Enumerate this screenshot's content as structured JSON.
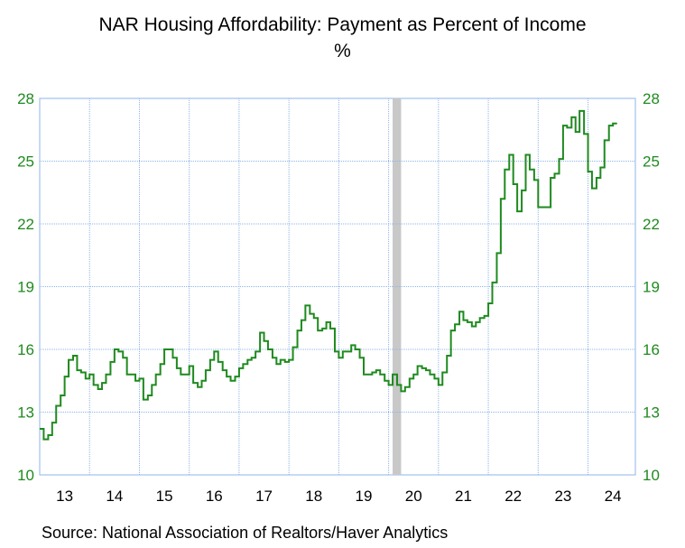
{
  "chart_data": {
    "type": "line",
    "title": "NAR Housing Affordability: Payment as Percent of Income",
    "subtitle": "%",
    "source": "Source:  National Association of Realtors/Haver Analytics",
    "ylim": [
      10,
      28
    ],
    "yticks": [
      "10",
      "13",
      "16",
      "19",
      "22",
      "25",
      "28"
    ],
    "x_range": [
      2013,
      2024.95
    ],
    "xtick_labels": [
      "13",
      "14",
      "15",
      "16",
      "17",
      "18",
      "19",
      "20",
      "21",
      "22",
      "23",
      "24"
    ],
    "grid": true,
    "step": true,
    "recession_band": [
      2020.08,
      2020.25
    ],
    "colors": {
      "series": "#1f8a1f",
      "axis_text": "#1f8a1f",
      "grid": "#8fb4e8",
      "recession": "#c8c8c8"
    },
    "series": [
      {
        "values": [
          [
            2013.0,
            12.2
          ],
          [
            2013.08,
            11.7
          ],
          [
            2013.17,
            11.9
          ],
          [
            2013.25,
            12.5
          ],
          [
            2013.33,
            13.3
          ],
          [
            2013.42,
            13.8
          ],
          [
            2013.5,
            14.7
          ],
          [
            2013.58,
            15.5
          ],
          [
            2013.67,
            15.7
          ],
          [
            2013.75,
            15.0
          ],
          [
            2013.83,
            14.9
          ],
          [
            2013.92,
            14.6
          ],
          [
            2014.0,
            14.8
          ],
          [
            2014.08,
            14.3
          ],
          [
            2014.17,
            14.1
          ],
          [
            2014.25,
            14.4
          ],
          [
            2014.33,
            14.8
          ],
          [
            2014.42,
            15.4
          ],
          [
            2014.5,
            16.0
          ],
          [
            2014.58,
            15.9
          ],
          [
            2014.67,
            15.6
          ],
          [
            2014.75,
            14.8
          ],
          [
            2014.83,
            14.8
          ],
          [
            2014.92,
            14.5
          ],
          [
            2015.0,
            14.6
          ],
          [
            2015.08,
            13.6
          ],
          [
            2015.17,
            13.8
          ],
          [
            2015.25,
            14.3
          ],
          [
            2015.33,
            14.8
          ],
          [
            2015.42,
            15.3
          ],
          [
            2015.5,
            16.0
          ],
          [
            2015.58,
            16.0
          ],
          [
            2015.67,
            15.6
          ],
          [
            2015.75,
            15.1
          ],
          [
            2015.83,
            14.8
          ],
          [
            2015.92,
            14.8
          ],
          [
            2016.0,
            15.2
          ],
          [
            2016.08,
            14.4
          ],
          [
            2016.17,
            14.2
          ],
          [
            2016.25,
            14.5
          ],
          [
            2016.33,
            15.0
          ],
          [
            2016.42,
            15.5
          ],
          [
            2016.5,
            15.9
          ],
          [
            2016.58,
            15.4
          ],
          [
            2016.67,
            15.0
          ],
          [
            2016.75,
            14.7
          ],
          [
            2016.83,
            14.5
          ],
          [
            2016.92,
            14.7
          ],
          [
            2017.0,
            15.1
          ],
          [
            2017.08,
            15.3
          ],
          [
            2017.17,
            15.5
          ],
          [
            2017.25,
            15.6
          ],
          [
            2017.33,
            15.9
          ],
          [
            2017.42,
            16.8
          ],
          [
            2017.5,
            16.4
          ],
          [
            2017.58,
            16.0
          ],
          [
            2017.67,
            15.6
          ],
          [
            2017.75,
            15.3
          ],
          [
            2017.83,
            15.5
          ],
          [
            2017.92,
            15.4
          ],
          [
            2018.0,
            15.5
          ],
          [
            2018.08,
            16.1
          ],
          [
            2018.17,
            16.9
          ],
          [
            2018.25,
            17.4
          ],
          [
            2018.33,
            18.1
          ],
          [
            2018.42,
            17.7
          ],
          [
            2018.5,
            17.5
          ],
          [
            2018.58,
            16.9
          ],
          [
            2018.67,
            17.0
          ],
          [
            2018.75,
            17.3
          ],
          [
            2018.83,
            17.0
          ],
          [
            2018.92,
            15.9
          ],
          [
            2019.0,
            15.6
          ],
          [
            2019.08,
            15.9
          ],
          [
            2019.17,
            15.9
          ],
          [
            2019.25,
            16.2
          ],
          [
            2019.33,
            16.0
          ],
          [
            2019.42,
            15.6
          ],
          [
            2019.5,
            14.8
          ],
          [
            2019.58,
            14.8
          ],
          [
            2019.67,
            14.9
          ],
          [
            2019.75,
            15.0
          ],
          [
            2019.83,
            14.8
          ],
          [
            2019.92,
            14.5
          ],
          [
            2020.0,
            14.3
          ],
          [
            2020.08,
            14.8
          ],
          [
            2020.17,
            14.3
          ],
          [
            2020.25,
            14.0
          ],
          [
            2020.33,
            14.2
          ],
          [
            2020.42,
            14.6
          ],
          [
            2020.5,
            14.8
          ],
          [
            2020.58,
            15.2
          ],
          [
            2020.67,
            15.1
          ],
          [
            2020.75,
            15.0
          ],
          [
            2020.83,
            14.8
          ],
          [
            2020.92,
            14.6
          ],
          [
            2021.0,
            14.3
          ],
          [
            2021.08,
            14.9
          ],
          [
            2021.17,
            15.7
          ],
          [
            2021.25,
            16.9
          ],
          [
            2021.33,
            17.2
          ],
          [
            2021.42,
            17.8
          ],
          [
            2021.5,
            17.4
          ],
          [
            2021.58,
            17.3
          ],
          [
            2021.67,
            17.1
          ],
          [
            2021.75,
            17.3
          ],
          [
            2021.83,
            17.5
          ],
          [
            2021.92,
            17.6
          ],
          [
            2022.0,
            18.2
          ],
          [
            2022.08,
            19.2
          ],
          [
            2022.17,
            20.6
          ],
          [
            2022.25,
            23.2
          ],
          [
            2022.33,
            24.6
          ],
          [
            2022.42,
            25.3
          ],
          [
            2022.5,
            23.9
          ],
          [
            2022.58,
            22.6
          ],
          [
            2022.67,
            23.6
          ],
          [
            2022.75,
            25.3
          ],
          [
            2022.83,
            24.6
          ],
          [
            2022.92,
            24.1
          ],
          [
            2023.0,
            22.8
          ],
          [
            2023.08,
            22.8
          ],
          [
            2023.17,
            22.8
          ],
          [
            2023.25,
            24.2
          ],
          [
            2023.33,
            24.4
          ],
          [
            2023.42,
            25.1
          ],
          [
            2023.5,
            26.7
          ],
          [
            2023.58,
            26.6
          ],
          [
            2023.67,
            27.1
          ],
          [
            2023.75,
            26.4
          ],
          [
            2023.83,
            27.4
          ],
          [
            2023.92,
            26.3
          ],
          [
            2024.0,
            24.5
          ],
          [
            2024.08,
            23.7
          ],
          [
            2024.17,
            24.2
          ],
          [
            2024.25,
            24.7
          ],
          [
            2024.33,
            26.0
          ],
          [
            2024.42,
            26.7
          ],
          [
            2024.5,
            26.8
          ]
        ]
      }
    ]
  }
}
